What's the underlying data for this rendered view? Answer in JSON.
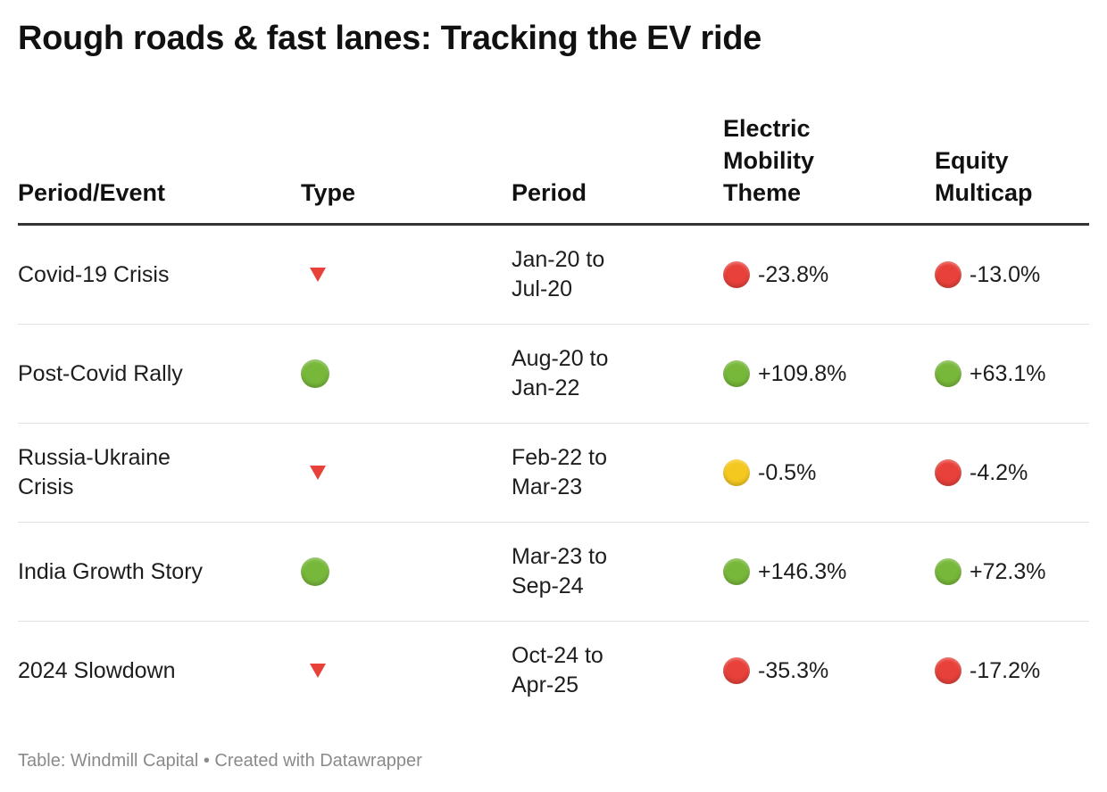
{
  "title": "Rough roads & fast lanes: Tracking the EV ride",
  "footer": "Table: Windmill Capital • Created with Datawrapper",
  "colors": {
    "red": "#e8413a",
    "green": "#77b83a",
    "yellow": "#f5c81f"
  },
  "chart_data": {
    "type": "table",
    "columns": [
      "Period/Event",
      "Type",
      "Period",
      "Electric Mobility Theme",
      "Equity Multicap"
    ],
    "rows": [
      {
        "event": "Covid-19 Crisis",
        "type_icon": "red-down-triangle",
        "period": "Jan-20 to Jul-20",
        "ev_icon": "red-circle",
        "ev_value": "-23.8%",
        "multicap_icon": "red-circle",
        "multicap_value": "-13.0%"
      },
      {
        "event": "Post-Covid Rally",
        "type_icon": "green-circle",
        "period": "Aug-20 to Jan-22",
        "ev_icon": "green-circle",
        "ev_value": "+109.8%",
        "multicap_icon": "green-circle",
        "multicap_value": "+63.1%"
      },
      {
        "event": "Russia-Ukraine Crisis",
        "type_icon": "red-down-triangle",
        "period": "Feb-22 to Mar-23",
        "ev_icon": "yellow-circle",
        "ev_value": "-0.5%",
        "multicap_icon": "red-circle",
        "multicap_value": "-4.2%"
      },
      {
        "event": "India Growth Story",
        "type_icon": "green-circle",
        "period": "Mar-23 to Sep-24",
        "ev_icon": "green-circle",
        "ev_value": "+146.3%",
        "multicap_icon": "green-circle",
        "multicap_value": "+72.3%"
      },
      {
        "event": "2024 Slowdown",
        "type_icon": "red-down-triangle",
        "period": "Oct-24 to Apr-25",
        "ev_icon": "red-circle",
        "ev_value": "-35.3%",
        "multicap_icon": "red-circle",
        "multicap_value": "-17.2%"
      }
    ]
  }
}
